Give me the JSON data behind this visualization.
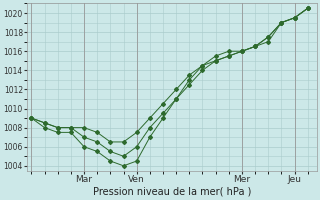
{
  "title": "Pression niveau de la mer( hPa )",
  "bg_color": "#cce8e8",
  "grid_color": "#aacccc",
  "line_color": "#2d6a2d",
  "ylim": [
    1003.5,
    1021.0
  ],
  "yticks": [
    1004,
    1006,
    1008,
    1010,
    1012,
    1014,
    1016,
    1018,
    1020
  ],
  "xlim": [
    -2,
    130
  ],
  "xtick_pos": [
    24,
    48,
    96,
    120
  ],
  "xtick_labels": [
    "Mar",
    "Ven",
    "Mer",
    "Jeu"
  ],
  "vlines": [
    0,
    24,
    48,
    96,
    120
  ],
  "series1_x": [
    0,
    6,
    12,
    18,
    24,
    30,
    36,
    42,
    48,
    54,
    60,
    66,
    72,
    78,
    84,
    90,
    96,
    102,
    108,
    114,
    120,
    126
  ],
  "series1_y": [
    1009.0,
    1008.5,
    1008.0,
    1008.0,
    1008.0,
    1007.5,
    1006.5,
    1006.5,
    1007.5,
    1009.0,
    1010.5,
    1012.0,
    1013.5,
    1014.5,
    1015.0,
    1015.5,
    1016.0,
    1016.5,
    1017.0,
    1019.0,
    1019.5,
    1020.5
  ],
  "series2_x": [
    0,
    6,
    12,
    18,
    24,
    30,
    36,
    42,
    48,
    54,
    60,
    66,
    72,
    78,
    84,
    90,
    96,
    102,
    108,
    114,
    120,
    126
  ],
  "series2_y": [
    1009.0,
    1008.5,
    1008.0,
    1008.0,
    1007.0,
    1006.5,
    1005.5,
    1005.0,
    1006.0,
    1008.0,
    1009.5,
    1011.0,
    1012.5,
    1014.0,
    1015.0,
    1015.5,
    1016.0,
    1016.5,
    1017.5,
    1019.0,
    1019.5,
    1020.5
  ],
  "series3_x": [
    0,
    6,
    12,
    18,
    24,
    30,
    36,
    42,
    48,
    54,
    60,
    66,
    72,
    78,
    84,
    90,
    96,
    102,
    108,
    114,
    120,
    126
  ],
  "series3_y": [
    1009.0,
    1008.0,
    1007.5,
    1007.5,
    1006.0,
    1005.5,
    1004.5,
    1004.0,
    1004.5,
    1007.0,
    1009.0,
    1011.0,
    1013.0,
    1014.5,
    1015.5,
    1016.0,
    1016.0,
    1016.5,
    1017.5,
    1019.0,
    1019.5,
    1020.5
  ]
}
